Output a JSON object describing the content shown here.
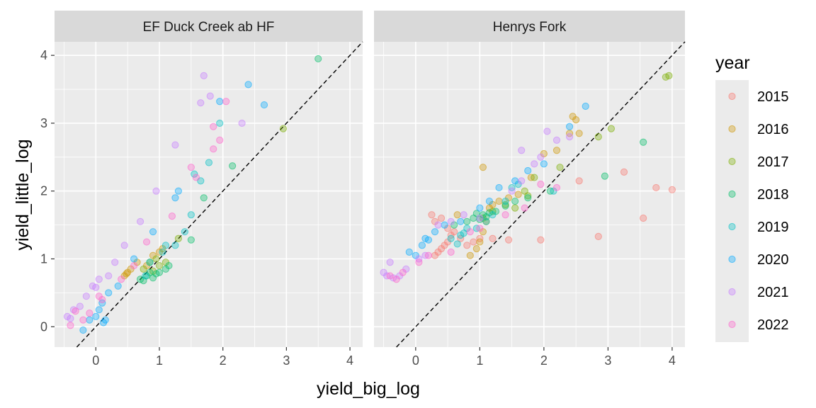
{
  "chart_data": {
    "type": "scatter",
    "xlabel": "yield_big_log",
    "ylabel": "yield_little_log",
    "xlim": [
      -0.65,
      4.2
    ],
    "ylim": [
      -0.3,
      4.2
    ],
    "xticks": [
      0,
      1,
      2,
      3,
      4
    ],
    "yticks": [
      0,
      1,
      2,
      3,
      4
    ],
    "grid": true,
    "reference_line": {
      "style": "dashed",
      "slope": 1,
      "intercept": 0
    },
    "facets": [
      "EF Duck Creek ab HF",
      "Henrys Fork"
    ],
    "legend": {
      "title": "year",
      "position": "right",
      "entries": [
        {
          "label": "2015",
          "color": "#F8766D"
        },
        {
          "label": "2016",
          "color": "#CD9600"
        },
        {
          "label": "2017",
          "color": "#7CAE00"
        },
        {
          "label": "2018",
          "color": "#00BE67"
        },
        {
          "label": "2019",
          "color": "#00BFC4"
        },
        {
          "label": "2020",
          "color": "#00A9FF"
        },
        {
          "label": "2021",
          "color": "#C77CFF"
        },
        {
          "label": "2022",
          "color": "#FF61CC"
        }
      ]
    },
    "points": {
      "EF Duck Creek ab HF": {
        "2016": [
          [
            0.45,
            0.75
          ],
          [
            0.5,
            0.8
          ],
          [
            0.55,
            0.85
          ],
          [
            0.65,
            0.95
          ],
          [
            0.9,
            1.05
          ],
          [
            1.0,
            1.1
          ],
          [
            1.05,
            1.15
          ],
          [
            0.8,
            0.9
          ],
          [
            0.48,
            0.78
          ]
        ],
        "2017": [
          [
            0.75,
            0.85
          ],
          [
            0.85,
            0.95
          ],
          [
            0.95,
            1.0
          ],
          [
            1.0,
            0.9
          ],
          [
            1.1,
            0.95
          ],
          [
            1.3,
            1.3
          ],
          [
            2.95,
            2.92
          ],
          [
            0.9,
            0.82
          ]
        ],
        "2018": [
          [
            0.7,
            0.7
          ],
          [
            0.75,
            0.68
          ],
          [
            0.8,
            0.75
          ],
          [
            0.85,
            0.8
          ],
          [
            0.9,
            0.72
          ],
          [
            1.0,
            0.8
          ],
          [
            1.1,
            0.85
          ],
          [
            1.15,
            0.9
          ],
          [
            1.5,
            1.28
          ],
          [
            1.7,
            1.9
          ],
          [
            3.5,
            3.95
          ],
          [
            2.15,
            2.37
          ],
          [
            0.95,
            0.78
          ]
        ],
        "2019": [
          [
            0.85,
            0.95
          ],
          [
            1.05,
            1.1
          ],
          [
            1.1,
            1.2
          ],
          [
            1.4,
            1.4
          ],
          [
            1.5,
            1.65
          ],
          [
            1.55,
            2.25
          ],
          [
            1.95,
            3.0
          ],
          [
            1.65,
            2.15
          ],
          [
            1.25,
            1.2
          ],
          [
            0.78,
            0.75
          ],
          [
            1.78,
            2.42
          ]
        ],
        "2020": [
          [
            -0.2,
            -0.05
          ],
          [
            -0.1,
            0.1
          ],
          [
            0.0,
            0.15
          ],
          [
            0.05,
            0.25
          ],
          [
            0.1,
            0.35
          ],
          [
            0.15,
            0.1
          ],
          [
            0.2,
            0.5
          ],
          [
            0.35,
            0.6
          ],
          [
            0.6,
            1.0
          ],
          [
            0.9,
            1.4
          ],
          [
            1.25,
            1.9
          ],
          [
            1.3,
            2.0
          ],
          [
            1.95,
            3.32
          ],
          [
            2.4,
            3.57
          ],
          [
            2.65,
            3.27
          ],
          [
            0.12,
            0.06
          ]
        ],
        "2021": [
          [
            -0.45,
            0.15
          ],
          [
            -0.35,
            0.25
          ],
          [
            -0.25,
            0.3
          ],
          [
            -0.15,
            0.45
          ],
          [
            -0.05,
            0.6
          ],
          [
            0.05,
            0.7
          ],
          [
            0.2,
            0.75
          ],
          [
            0.3,
            0.95
          ],
          [
            0.45,
            1.2
          ],
          [
            0.7,
            1.55
          ],
          [
            0.95,
            2.0
          ],
          [
            1.25,
            2.68
          ],
          [
            1.65,
            3.3
          ],
          [
            1.7,
            3.7
          ],
          [
            1.8,
            3.4
          ],
          [
            2.3,
            3.0
          ],
          [
            -0.4,
            0.12
          ],
          [
            0.0,
            0.58
          ]
        ],
        "2022": [
          [
            -0.4,
            0.02
          ],
          [
            -0.2,
            0.1
          ],
          [
            -0.1,
            0.2
          ],
          [
            0.05,
            0.45
          ],
          [
            0.1,
            0.4
          ],
          [
            0.4,
            0.7
          ],
          [
            0.6,
            0.9
          ],
          [
            0.8,
            1.25
          ],
          [
            1.2,
            1.63
          ],
          [
            1.5,
            2.35
          ],
          [
            1.95,
            2.75
          ],
          [
            2.05,
            3.32
          ],
          [
            1.85,
            2.95
          ],
          [
            1.85,
            2.62
          ],
          [
            1.58,
            2.2
          ],
          [
            -0.32,
            0.23
          ]
        ]
      },
      "Henrys Fork": {
        "2015": [
          [
            0.3,
            1.05
          ],
          [
            0.35,
            1.1
          ],
          [
            0.4,
            1.15
          ],
          [
            0.45,
            1.2
          ],
          [
            0.5,
            1.25
          ],
          [
            0.55,
            1.35
          ],
          [
            0.6,
            1.4
          ],
          [
            0.7,
            1.3
          ],
          [
            0.8,
            1.2
          ],
          [
            0.9,
            1.25
          ],
          [
            1.0,
            1.3
          ],
          [
            1.2,
            1.3
          ],
          [
            1.45,
            1.28
          ],
          [
            1.95,
            1.28
          ],
          [
            2.85,
            1.33
          ],
          [
            3.55,
            1.6
          ],
          [
            3.75,
            2.05
          ],
          [
            4.0,
            2.02
          ],
          [
            3.25,
            2.28
          ],
          [
            2.55,
            2.15
          ],
          [
            0.3,
            1.55
          ],
          [
            0.4,
            1.6
          ],
          [
            0.25,
            1.65
          ],
          [
            0.5,
            1.45
          ]
        ],
        "2016": [
          [
            0.85,
            1.05
          ],
          [
            0.95,
            1.15
          ],
          [
            1.0,
            1.25
          ],
          [
            1.05,
            1.4
          ],
          [
            1.1,
            1.55
          ],
          [
            1.15,
            1.75
          ],
          [
            1.2,
            1.8
          ],
          [
            1.3,
            1.85
          ],
          [
            1.45,
            1.9
          ],
          [
            1.6,
            1.95
          ],
          [
            1.8,
            2.2
          ],
          [
            2.0,
            2.55
          ],
          [
            2.2,
            2.6
          ],
          [
            2.4,
            2.85
          ],
          [
            2.45,
            3.1
          ],
          [
            2.5,
            3.05
          ],
          [
            2.55,
            2.85
          ],
          [
            1.05,
            2.35
          ],
          [
            0.65,
            1.65
          ]
        ],
        "2017": [
          [
            1.05,
            1.6
          ],
          [
            1.2,
            1.7
          ],
          [
            1.4,
            1.8
          ],
          [
            1.7,
            2.0
          ],
          [
            1.85,
            2.2
          ],
          [
            2.25,
            2.35
          ],
          [
            2.85,
            2.8
          ],
          [
            3.05,
            2.92
          ],
          [
            3.95,
            3.7
          ],
          [
            3.9,
            3.68
          ],
          [
            1.55,
            1.75
          ],
          [
            1.75,
            1.93
          ]
        ],
        "2018": [
          [
            0.6,
            1.5
          ],
          [
            0.8,
            1.55
          ],
          [
            0.9,
            1.6
          ],
          [
            1.0,
            1.58
          ],
          [
            1.05,
            1.65
          ],
          [
            1.1,
            1.62
          ],
          [
            1.25,
            1.7
          ],
          [
            1.4,
            1.78
          ],
          [
            1.55,
            1.85
          ],
          [
            1.75,
            1.9
          ],
          [
            2.1,
            2.0
          ],
          [
            2.95,
            2.22
          ],
          [
            3.55,
            2.72
          ],
          [
            0.95,
            1.67
          ],
          [
            1.15,
            1.68
          ]
        ],
        "2019": [
          [
            0.55,
            1.3
          ],
          [
            0.7,
            1.35
          ],
          [
            0.8,
            1.45
          ],
          [
            0.95,
            1.45
          ],
          [
            1.1,
            1.55
          ],
          [
            1.2,
            1.65
          ],
          [
            1.4,
            1.85
          ],
          [
            1.5,
            2.05
          ],
          [
            1.6,
            2.1
          ],
          [
            2.15,
            2.0
          ],
          [
            0.65,
            1.22
          ],
          [
            0.75,
            1.38
          ]
        ],
        "2020": [
          [
            -0.1,
            1.1
          ],
          [
            0.0,
            1.05
          ],
          [
            0.1,
            1.2
          ],
          [
            0.15,
            1.3
          ],
          [
            0.3,
            1.4
          ],
          [
            0.45,
            1.5
          ],
          [
            0.7,
            1.55
          ],
          [
            1.0,
            1.75
          ],
          [
            1.15,
            1.85
          ],
          [
            1.3,
            2.05
          ],
          [
            1.55,
            2.15
          ],
          [
            1.75,
            2.3
          ],
          [
            2.0,
            2.4
          ],
          [
            2.4,
            2.95
          ],
          [
            2.65,
            3.25
          ],
          [
            0.2,
            1.28
          ]
        ],
        "2021": [
          [
            -0.5,
            0.8
          ],
          [
            -0.45,
            0.75
          ],
          [
            -0.35,
            0.72
          ],
          [
            -0.25,
            0.75
          ],
          [
            -0.15,
            0.85
          ],
          [
            0.05,
            1.0
          ],
          [
            0.15,
            1.05
          ],
          [
            0.35,
            1.5
          ],
          [
            0.55,
            1.55
          ],
          [
            0.75,
            1.65
          ],
          [
            1.0,
            1.6
          ],
          [
            1.5,
            2.0
          ],
          [
            1.65,
            2.15
          ],
          [
            1.85,
            2.4
          ],
          [
            2.2,
            2.75
          ],
          [
            2.4,
            2.8
          ],
          [
            1.95,
            2.5
          ],
          [
            2.05,
            2.88
          ],
          [
            1.65,
            2.6
          ],
          [
            -0.4,
            0.95
          ]
        ],
        "2022": [
          [
            -0.4,
            0.75
          ],
          [
            -0.3,
            0.7
          ],
          [
            -0.2,
            0.8
          ],
          [
            0.05,
            0.95
          ],
          [
            0.2,
            1.05
          ],
          [
            0.55,
            1.1
          ],
          [
            0.85,
            1.4
          ],
          [
            1.0,
            1.45
          ],
          [
            1.4,
            1.65
          ],
          [
            1.7,
            1.75
          ],
          [
            1.95,
            2.1
          ],
          [
            2.2,
            2.05
          ]
        ]
      }
    }
  }
}
